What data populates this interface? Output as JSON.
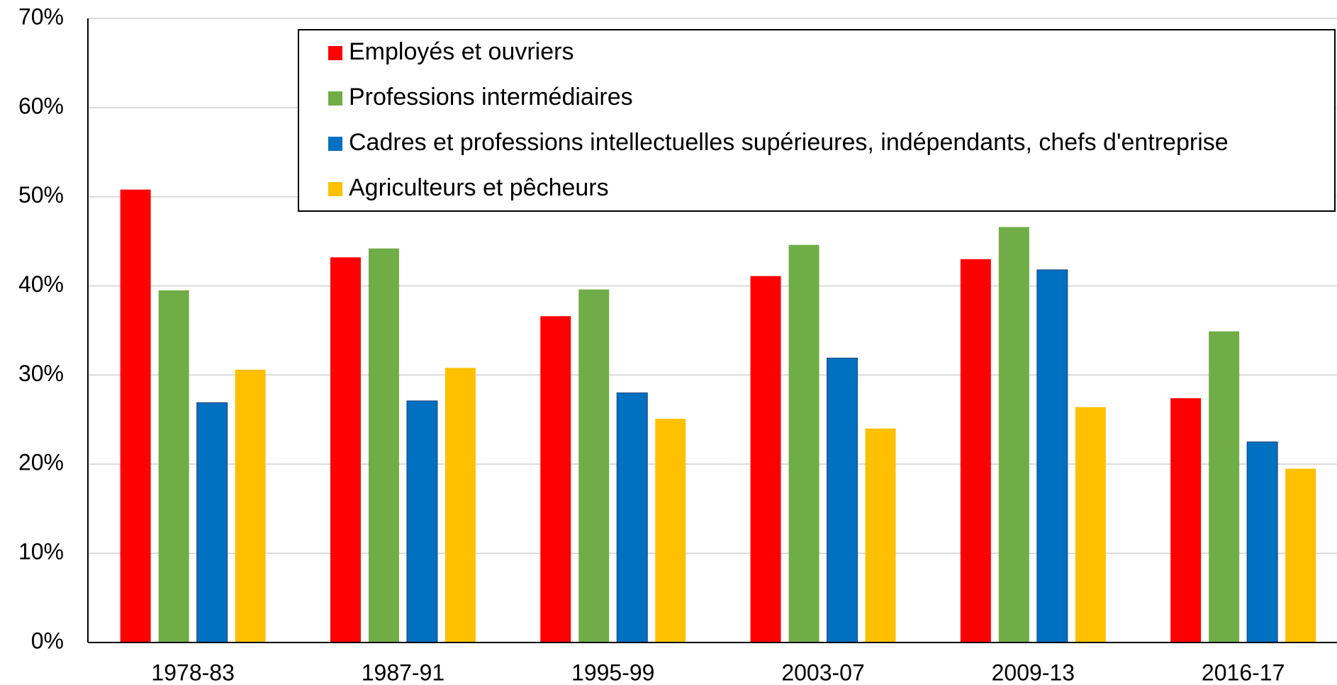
{
  "chart_data": {
    "type": "bar",
    "categories": [
      "1978-83",
      "1987-91",
      "1995-99",
      "2003-07",
      "2009-13",
      "2016-17"
    ],
    "series": [
      {
        "name": "Employés et ouvriers",
        "color": "#ff0000",
        "values": [
          50.8,
          43.2,
          36.6,
          41.1,
          43.0,
          27.4
        ]
      },
      {
        "name": "Professions intermédiaires",
        "color": "#70ad47",
        "values": [
          39.5,
          44.2,
          39.6,
          44.6,
          46.6,
          34.9
        ]
      },
      {
        "name": "Cadres et professions intellectuelles supérieures, indépendants, chefs d'entreprise",
        "color": "#0070c0",
        "values": [
          26.9,
          27.1,
          28.0,
          31.9,
          41.8,
          22.5
        ]
      },
      {
        "name": "Agriculteurs et pêcheurs",
        "color": "#ffc000",
        "values": [
          30.6,
          30.8,
          25.1,
          24.0,
          26.4,
          19.5
        ]
      }
    ],
    "ylim": [
      0,
      70
    ],
    "yticks": [
      {
        "value": 0,
        "label": "0%"
      },
      {
        "value": 10,
        "label": "10%"
      },
      {
        "value": 20,
        "label": "20%"
      },
      {
        "value": 30,
        "label": "30%"
      },
      {
        "value": 40,
        "label": "40%"
      },
      {
        "value": 50,
        "label": "50%"
      },
      {
        "value": 60,
        "label": "60%"
      },
      {
        "value": 70,
        "label": "70%"
      }
    ],
    "grid": true,
    "legend": "upper right"
  }
}
